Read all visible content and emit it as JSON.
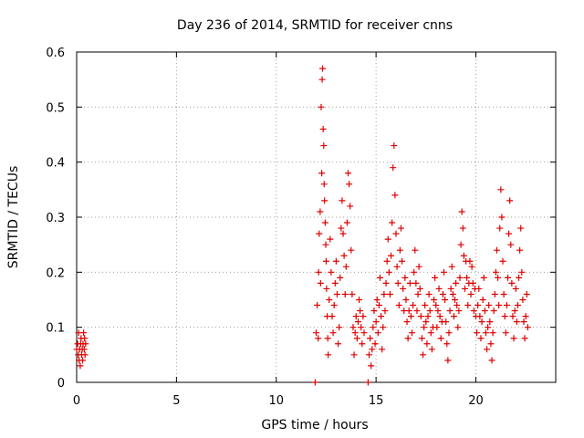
{
  "chart_data": {
    "type": "scatter",
    "title": "Day 236 of 2014, SRMTID for receiver cnns",
    "xlabel": "GPS time / hours",
    "ylabel": "SRMTID / TECUs",
    "xlim": [
      0,
      24
    ],
    "ylim": [
      0,
      0.6
    ],
    "xticks": [
      0,
      5,
      10,
      15,
      20
    ],
    "xtick_labels": [
      "0",
      "5",
      "10",
      "15",
      "20"
    ],
    "yticks": [
      0,
      0.1,
      0.2,
      0.3,
      0.4,
      0.5,
      0.6
    ],
    "ytick_labels": [
      "0",
      "0.1",
      "0.2",
      "0.3",
      "0.4",
      "0.5",
      "0.6"
    ],
    "grid": true,
    "marker": "+",
    "series": [
      {
        "name": "SRMTID",
        "color": "#e00000",
        "points": [
          [
            0.0,
            0.06
          ],
          [
            0.05,
            0.07
          ],
          [
            0.08,
            0.05
          ],
          [
            0.1,
            0.09
          ],
          [
            0.12,
            0.04
          ],
          [
            0.15,
            0.06
          ],
          [
            0.18,
            0.03
          ],
          [
            0.2,
            0.07
          ],
          [
            0.22,
            0.08
          ],
          [
            0.25,
            0.05
          ],
          [
            0.28,
            0.06
          ],
          [
            0.3,
            0.04
          ],
          [
            0.32,
            0.07
          ],
          [
            0.35,
            0.09
          ],
          [
            0.38,
            0.06
          ],
          [
            0.4,
            0.08
          ],
          [
            0.42,
            0.05
          ],
          [
            0.45,
            0.07
          ],
          [
            11.95,
            0.0
          ],
          [
            12.0,
            0.09
          ],
          [
            12.05,
            0.14
          ],
          [
            12.1,
            0.08
          ],
          [
            12.12,
            0.2
          ],
          [
            12.15,
            0.27
          ],
          [
            12.2,
            0.31
          ],
          [
            12.22,
            0.18
          ],
          [
            12.25,
            0.5
          ],
          [
            12.28,
            0.38
          ],
          [
            12.3,
            0.55
          ],
          [
            12.32,
            0.57
          ],
          [
            12.35,
            0.46
          ],
          [
            12.38,
            0.43
          ],
          [
            12.4,
            0.36
          ],
          [
            12.42,
            0.33
          ],
          [
            12.45,
            0.29
          ],
          [
            12.48,
            0.25
          ],
          [
            12.5,
            0.22
          ],
          [
            12.52,
            0.17
          ],
          [
            12.55,
            0.12
          ],
          [
            12.58,
            0.08
          ],
          [
            12.6,
            0.05
          ],
          [
            12.65,
            0.15
          ],
          [
            12.7,
            0.26
          ],
          [
            12.75,
            0.2
          ],
          [
            12.8,
            0.12
          ],
          [
            12.85,
            0.09
          ],
          [
            12.9,
            0.14
          ],
          [
            12.95,
            0.18
          ],
          [
            13.0,
            0.22
          ],
          [
            13.05,
            0.16
          ],
          [
            13.1,
            0.07
          ],
          [
            13.15,
            0.1
          ],
          [
            13.2,
            0.19
          ],
          [
            13.25,
            0.28
          ],
          [
            13.3,
            0.33
          ],
          [
            13.35,
            0.27
          ],
          [
            13.4,
            0.23
          ],
          [
            13.45,
            0.16
          ],
          [
            13.5,
            0.21
          ],
          [
            13.55,
            0.29
          ],
          [
            13.6,
            0.38
          ],
          [
            13.65,
            0.36
          ],
          [
            13.7,
            0.32
          ],
          [
            13.75,
            0.24
          ],
          [
            13.8,
            0.16
          ],
          [
            13.85,
            0.1
          ],
          [
            13.9,
            0.05
          ],
          [
            13.95,
            0.09
          ],
          [
            14.0,
            0.12
          ],
          [
            14.05,
            0.08
          ],
          [
            14.1,
            0.11
          ],
          [
            14.15,
            0.15
          ],
          [
            14.2,
            0.13
          ],
          [
            14.25,
            0.1
          ],
          [
            14.3,
            0.07
          ],
          [
            14.35,
            0.12
          ],
          [
            14.4,
            0.09
          ],
          [
            14.6,
            0.0
          ],
          [
            14.65,
            0.05
          ],
          [
            14.7,
            0.08
          ],
          [
            14.75,
            0.03
          ],
          [
            14.8,
            0.06
          ],
          [
            14.85,
            0.1
          ],
          [
            14.9,
            0.13
          ],
          [
            14.95,
            0.07
          ],
          [
            15.0,
            0.11
          ],
          [
            15.05,
            0.15
          ],
          [
            15.1,
            0.09
          ],
          [
            15.15,
            0.14
          ],
          [
            15.2,
            0.19
          ],
          [
            15.25,
            0.12
          ],
          [
            15.3,
            0.06
          ],
          [
            15.35,
            0.1
          ],
          [
            15.4,
            0.16
          ],
          [
            15.45,
            0.13
          ],
          [
            15.5,
            0.18
          ],
          [
            15.55,
            0.22
          ],
          [
            15.6,
            0.26
          ],
          [
            15.65,
            0.2
          ],
          [
            15.7,
            0.16
          ],
          [
            15.75,
            0.23
          ],
          [
            15.8,
            0.29
          ],
          [
            15.85,
            0.39
          ],
          [
            15.9,
            0.43
          ],
          [
            15.95,
            0.34
          ],
          [
            16.0,
            0.27
          ],
          [
            16.05,
            0.21
          ],
          [
            16.1,
            0.18
          ],
          [
            16.15,
            0.14
          ],
          [
            16.2,
            0.24
          ],
          [
            16.25,
            0.28
          ],
          [
            16.3,
            0.22
          ],
          [
            16.35,
            0.17
          ],
          [
            16.4,
            0.13
          ],
          [
            16.45,
            0.19
          ],
          [
            16.5,
            0.15
          ],
          [
            16.55,
            0.11
          ],
          [
            16.6,
            0.08
          ],
          [
            16.65,
            0.13
          ],
          [
            16.7,
            0.18
          ],
          [
            16.75,
            0.12
          ],
          [
            16.8,
            0.09
          ],
          [
            16.85,
            0.14
          ],
          [
            16.9,
            0.2
          ],
          [
            16.95,
            0.24
          ],
          [
            17.0,
            0.18
          ],
          [
            17.05,
            0.13
          ],
          [
            17.1,
            0.16
          ],
          [
            17.15,
            0.21
          ],
          [
            17.2,
            0.17
          ],
          [
            17.25,
            0.12
          ],
          [
            17.3,
            0.08
          ],
          [
            17.35,
            0.05
          ],
          [
            17.4,
            0.1
          ],
          [
            17.45,
            0.14
          ],
          [
            17.5,
            0.11
          ],
          [
            17.55,
            0.07
          ],
          [
            17.6,
            0.12
          ],
          [
            17.65,
            0.16
          ],
          [
            17.7,
            0.13
          ],
          [
            17.75,
            0.09
          ],
          [
            17.8,
            0.06
          ],
          [
            17.85,
            0.1
          ],
          [
            17.9,
            0.15
          ],
          [
            17.95,
            0.19
          ],
          [
            18.0,
            0.14
          ],
          [
            18.05,
            0.1
          ],
          [
            18.1,
            0.13
          ],
          [
            18.15,
            0.17
          ],
          [
            18.2,
            0.12
          ],
          [
            18.25,
            0.08
          ],
          [
            18.3,
            0.11
          ],
          [
            18.35,
            0.16
          ],
          [
            18.4,
            0.2
          ],
          [
            18.45,
            0.15
          ],
          [
            18.5,
            0.11
          ],
          [
            18.55,
            0.07
          ],
          [
            18.6,
            0.04
          ],
          [
            18.65,
            0.09
          ],
          [
            18.7,
            0.13
          ],
          [
            18.75,
            0.17
          ],
          [
            18.8,
            0.21
          ],
          [
            18.85,
            0.16
          ],
          [
            18.9,
            0.12
          ],
          [
            18.95,
            0.15
          ],
          [
            19.0,
            0.18
          ],
          [
            19.05,
            0.14
          ],
          [
            19.1,
            0.1
          ],
          [
            19.15,
            0.13
          ],
          [
            19.2,
            0.19
          ],
          [
            19.25,
            0.25
          ],
          [
            19.3,
            0.31
          ],
          [
            19.35,
            0.28
          ],
          [
            19.4,
            0.23
          ],
          [
            19.45,
            0.17
          ],
          [
            19.5,
            0.22
          ],
          [
            19.55,
            0.19
          ],
          [
            19.6,
            0.14
          ],
          [
            19.65,
            0.18
          ],
          [
            19.7,
            0.22
          ],
          [
            19.75,
            0.16
          ],
          [
            19.8,
            0.21
          ],
          [
            19.85,
            0.18
          ],
          [
            19.9,
            0.13
          ],
          [
            19.95,
            0.17
          ],
          [
            20.0,
            0.12
          ],
          [
            20.05,
            0.09
          ],
          [
            20.1,
            0.14
          ],
          [
            20.15,
            0.17
          ],
          [
            20.2,
            0.12
          ],
          [
            20.25,
            0.08
          ],
          [
            20.3,
            0.11
          ],
          [
            20.35,
            0.15
          ],
          [
            20.4,
            0.19
          ],
          [
            20.45,
            0.13
          ],
          [
            20.5,
            0.09
          ],
          [
            20.55,
            0.06
          ],
          [
            20.6,
            0.1
          ],
          [
            20.65,
            0.14
          ],
          [
            20.7,
            0.11
          ],
          [
            20.75,
            0.07
          ],
          [
            20.8,
            0.04
          ],
          [
            20.85,
            0.09
          ],
          [
            20.9,
            0.13
          ],
          [
            20.95,
            0.16
          ],
          [
            21.0,
            0.2
          ],
          [
            21.05,
            0.24
          ],
          [
            21.1,
            0.19
          ],
          [
            21.15,
            0.14
          ],
          [
            21.2,
            0.28
          ],
          [
            21.25,
            0.35
          ],
          [
            21.3,
            0.3
          ],
          [
            21.35,
            0.22
          ],
          [
            21.4,
            0.16
          ],
          [
            21.45,
            0.12
          ],
          [
            21.5,
            0.09
          ],
          [
            21.55,
            0.14
          ],
          [
            21.6,
            0.19
          ],
          [
            21.65,
            0.27
          ],
          [
            21.7,
            0.33
          ],
          [
            21.75,
            0.25
          ],
          [
            21.8,
            0.18
          ],
          [
            21.85,
            0.12
          ],
          [
            21.9,
            0.08
          ],
          [
            21.95,
            0.13
          ],
          [
            22.0,
            0.17
          ],
          [
            22.05,
            0.11
          ],
          [
            22.1,
            0.14
          ],
          [
            22.15,
            0.19
          ],
          [
            22.2,
            0.24
          ],
          [
            22.25,
            0.28
          ],
          [
            22.3,
            0.2
          ],
          [
            22.35,
            0.15
          ],
          [
            22.4,
            0.11
          ],
          [
            22.45,
            0.08
          ],
          [
            22.5,
            0.12
          ],
          [
            22.55,
            0.16
          ],
          [
            22.6,
            0.1
          ]
        ]
      }
    ]
  }
}
